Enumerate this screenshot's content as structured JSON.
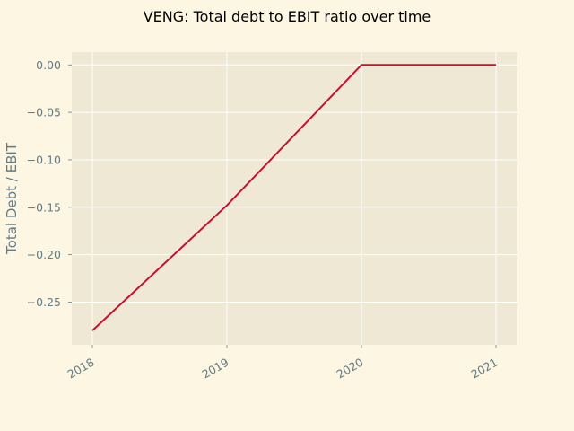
{
  "chart_data": {
    "type": "line",
    "title": "VENG: Total debt to EBIT ratio over time",
    "xlabel": "",
    "ylabel": "Total Debt / EBIT",
    "x": [
      "2018",
      "2019",
      "2020",
      "2021"
    ],
    "series": [
      {
        "values": [
          -0.28,
          -0.148,
          0.0,
          0.0
        ],
        "color": "#c8102e"
      }
    ],
    "ylim": [
      -0.295,
      0.0135
    ],
    "yticks": [
      "0.00",
      "−0.05",
      "−0.10",
      "−0.15",
      "−0.20",
      "−0.25"
    ],
    "ytick_values": [
      0.0,
      -0.05,
      -0.1,
      -0.15,
      -0.2,
      -0.25
    ],
    "grid": true,
    "colors": {
      "background": "#fdf6e3",
      "plot_area": "#eee8d5",
      "grid": "#ffffff",
      "tick_text": "#657b83",
      "line": "#c8102e"
    }
  }
}
